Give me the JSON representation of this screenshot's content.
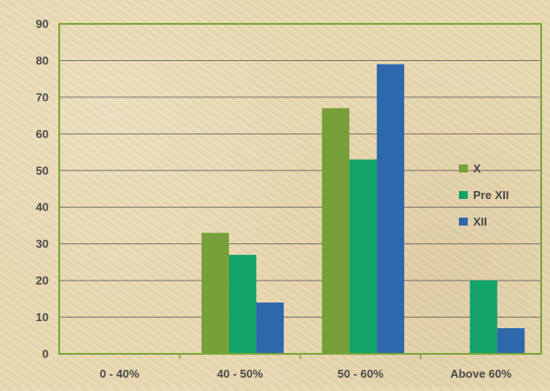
{
  "chart_data": {
    "type": "bar",
    "categories": [
      "0 - 40%",
      "40 - 50%",
      "50 - 60%",
      "Above 60%"
    ],
    "series": [
      {
        "name": "X",
        "values": [
          0,
          33,
          67,
          0
        ],
        "color": "#77a03a"
      },
      {
        "name": "Pre XII",
        "values": [
          0,
          27,
          53,
          20
        ],
        "color": "#12a36a"
      },
      {
        "name": "XII",
        "values": [
          0,
          14,
          79,
          7
        ],
        "color": "#2f67ad"
      }
    ],
    "yticks": [
      "0",
      "10",
      "20",
      "30",
      "40",
      "50",
      "60",
      "70",
      "80",
      "90"
    ],
    "ylim": [
      0,
      90
    ],
    "grid": true,
    "legend_position": "right",
    "plot_border_color": "#7aa83a"
  }
}
